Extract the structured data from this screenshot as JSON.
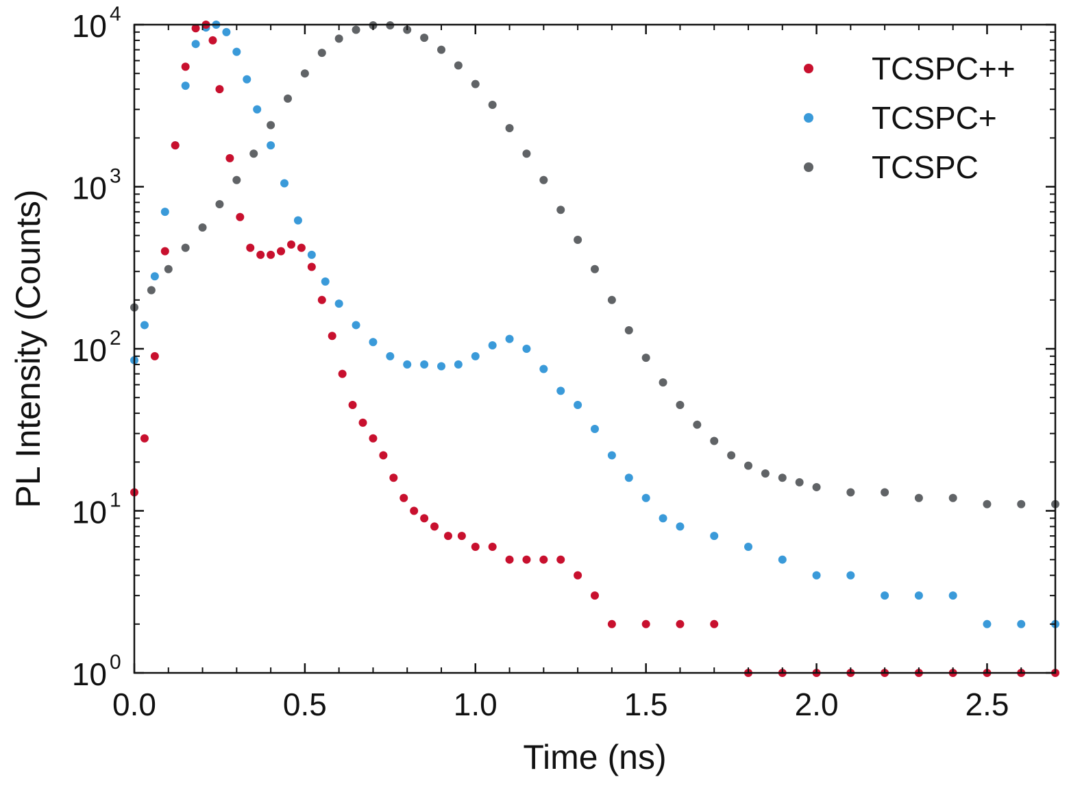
{
  "chart_data": {
    "type": "scatter",
    "title": "",
    "xlabel": "Time (ns)",
    "ylabel": "PL Intensity (Counts)",
    "xlim": [
      0.0,
      2.7
    ],
    "ylim": [
      1,
      10000
    ],
    "yscale": "log",
    "legend_position": "top-right",
    "xticks": [
      {
        "value": 0.0,
        "label": "0.0"
      },
      {
        "value": 0.5,
        "label": "0.5"
      },
      {
        "value": 1.0,
        "label": "1.0"
      },
      {
        "value": 1.5,
        "label": "1.5"
      },
      {
        "value": 2.0,
        "label": "2.0"
      },
      {
        "value": 2.5,
        "label": "2.5"
      }
    ],
    "yticks": [
      {
        "value": 1,
        "base": "10",
        "exp": "0"
      },
      {
        "value": 10,
        "base": "10",
        "exp": "1"
      },
      {
        "value": 100,
        "base": "10",
        "exp": "2"
      },
      {
        "value": 1000,
        "base": "10",
        "exp": "3"
      },
      {
        "value": 10000,
        "base": "10",
        "exp": "4"
      }
    ],
    "series": [
      {
        "name": "TCSPC++",
        "color": "#c8102e",
        "x": [
          0.0,
          0.03,
          0.06,
          0.09,
          0.12,
          0.15,
          0.18,
          0.21,
          0.23,
          0.25,
          0.28,
          0.31,
          0.34,
          0.37,
          0.4,
          0.43,
          0.46,
          0.49,
          0.52,
          0.55,
          0.58,
          0.61,
          0.64,
          0.67,
          0.7,
          0.73,
          0.76,
          0.79,
          0.82,
          0.85,
          0.88,
          0.92,
          0.96,
          1.0,
          1.05,
          1.1,
          1.15,
          1.2,
          1.25,
          1.3,
          1.35,
          1.4,
          1.5,
          1.6,
          1.7,
          1.8,
          1.9,
          2.0,
          2.1,
          2.2,
          2.3,
          2.4,
          2.5,
          2.6,
          2.7
        ],
        "y": [
          13,
          28,
          90,
          400,
          1800,
          5500,
          9500,
          10000,
          8000,
          4000,
          1500,
          650,
          420,
          380,
          380,
          400,
          440,
          420,
          320,
          200,
          120,
          70,
          45,
          35,
          28,
          22,
          16,
          12,
          10,
          9,
          8,
          7,
          7,
          6,
          6,
          5,
          5,
          5,
          5,
          4,
          3,
          2,
          2,
          2,
          2,
          1,
          1,
          1,
          1,
          1,
          1,
          1,
          1,
          1,
          1
        ]
      },
      {
        "name": "TCSPC+",
        "color": "#3a9ad9",
        "x": [
          0.0,
          0.03,
          0.06,
          0.09,
          0.12,
          0.15,
          0.18,
          0.21,
          0.24,
          0.27,
          0.3,
          0.33,
          0.36,
          0.4,
          0.44,
          0.48,
          0.52,
          0.56,
          0.6,
          0.65,
          0.7,
          0.75,
          0.8,
          0.85,
          0.9,
          0.95,
          1.0,
          1.05,
          1.1,
          1.15,
          1.2,
          1.25,
          1.3,
          1.35,
          1.4,
          1.45,
          1.5,
          1.55,
          1.6,
          1.7,
          1.8,
          1.9,
          2.0,
          2.1,
          2.2,
          2.3,
          2.4,
          2.5,
          2.6,
          2.7
        ],
        "y": [
          85,
          140,
          280,
          700,
          1800,
          4200,
          7600,
          9600,
          10000,
          9000,
          6800,
          4600,
          3000,
          1800,
          1050,
          620,
          380,
          260,
          190,
          140,
          110,
          90,
          80,
          80,
          78,
          80,
          90,
          105,
          115,
          100,
          75,
          55,
          45,
          32,
          22,
          16,
          12,
          9,
          8,
          7,
          6,
          5,
          4,
          4,
          3,
          3,
          3,
          2,
          2,
          2
        ]
      },
      {
        "name": "TCSPC",
        "color": "#606366",
        "x": [
          0.0,
          0.05,
          0.1,
          0.15,
          0.2,
          0.25,
          0.3,
          0.35,
          0.4,
          0.45,
          0.5,
          0.55,
          0.6,
          0.65,
          0.7,
          0.75,
          0.8,
          0.85,
          0.9,
          0.95,
          1.0,
          1.05,
          1.1,
          1.15,
          1.2,
          1.25,
          1.3,
          1.35,
          1.4,
          1.45,
          1.5,
          1.55,
          1.6,
          1.65,
          1.7,
          1.75,
          1.8,
          1.85,
          1.9,
          1.95,
          2.0,
          2.1,
          2.2,
          2.3,
          2.4,
          2.5,
          2.6,
          2.7
        ],
        "y": [
          180,
          230,
          310,
          420,
          560,
          780,
          1100,
          1600,
          2400,
          3500,
          5000,
          6700,
          8200,
          9300,
          9900,
          9900,
          9300,
          8300,
          7000,
          5600,
          4300,
          3200,
          2300,
          1600,
          1100,
          720,
          470,
          310,
          200,
          130,
          88,
          62,
          45,
          34,
          27,
          22,
          19,
          17,
          16,
          15,
          14,
          13,
          13,
          12,
          12,
          11,
          11,
          11
        ]
      }
    ]
  }
}
